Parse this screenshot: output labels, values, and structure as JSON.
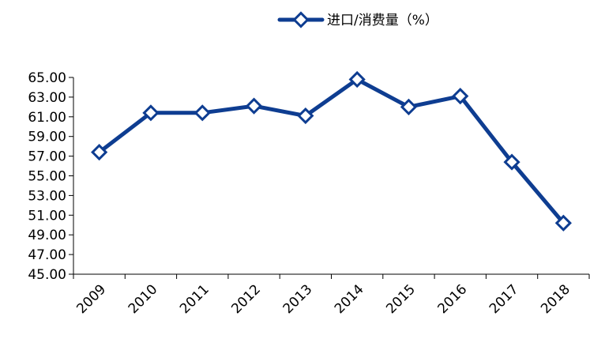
{
  "chart_data": {
    "type": "line",
    "title": "",
    "xlabel": "",
    "ylabel": "",
    "categories": [
      "2009",
      "2010",
      "2011",
      "2012",
      "2013",
      "2014",
      "2015",
      "2016",
      "2017",
      "2018"
    ],
    "series": [
      {
        "name": "进口/消费量（%）",
        "color": "#0e3d91",
        "values": [
          57.4,
          61.4,
          61.4,
          62.1,
          61.1,
          64.8,
          62.0,
          63.1,
          56.4,
          50.2
        ]
      }
    ],
    "ylim": [
      45,
      65
    ],
    "yticks": [
      "65.00",
      "63.00",
      "61.00",
      "59.00",
      "57.00",
      "55.00",
      "53.00",
      "51.00",
      "49.00",
      "47.00",
      "45.00"
    ],
    "grid": false,
    "legend_position": "top-center",
    "marker": "diamond"
  }
}
